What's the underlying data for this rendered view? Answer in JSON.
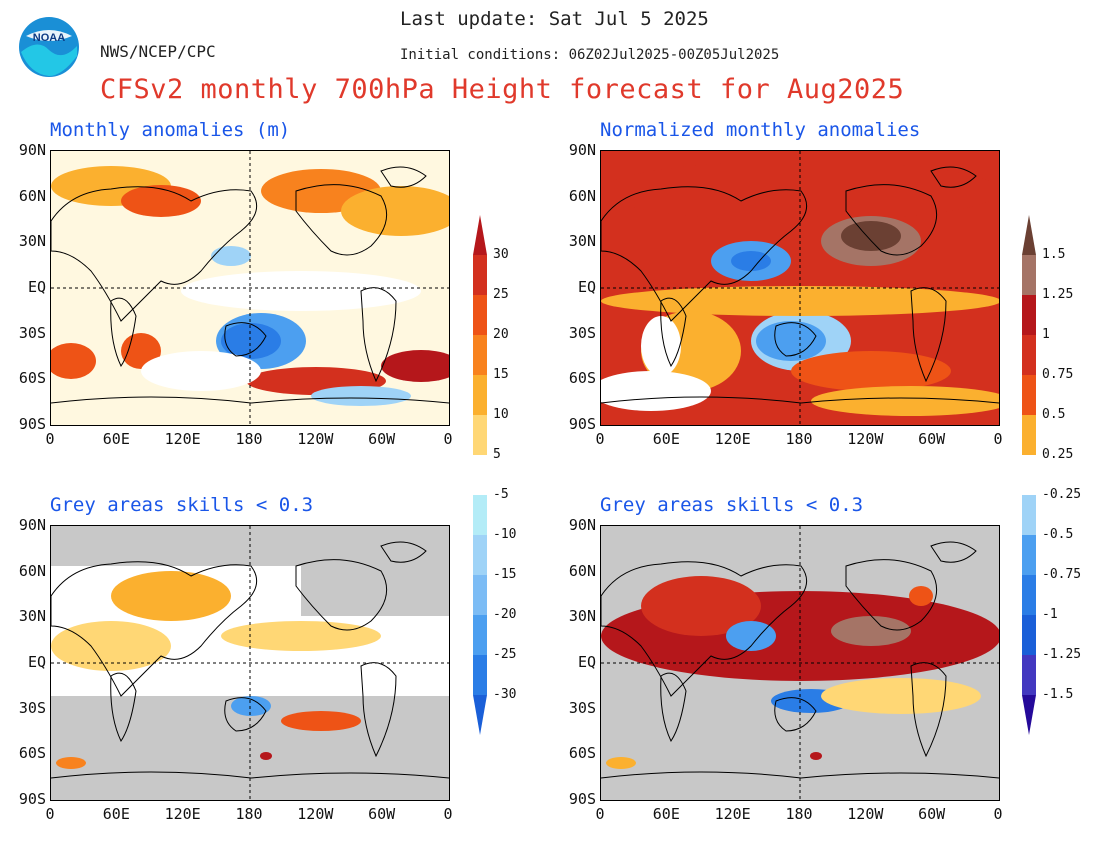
{
  "header": {
    "last_update": "Last update: Sat Jul 5 2025",
    "initial_conditions": "Initial conditions: 06Z02Jul2025-00Z05Jul2025",
    "org": "NWS/NCEP/CPC",
    "logo_text": "NOAA",
    "title": "CFSv2 monthly 700hPa Height forecast for Aug2025"
  },
  "panels": {
    "top_left": "Monthly anomalies (m)",
    "top_right": "Normalized monthly anomalies",
    "bottom_left": "Grey areas skills < 0.3",
    "bottom_right": "Grey areas skills < 0.3"
  },
  "axes": {
    "lat_labels": [
      "90N",
      "60N",
      "30N",
      "EQ",
      "30S",
      "60S",
      "90S"
    ],
    "lon_labels": [
      "0",
      "60E",
      "120E",
      "180",
      "120W",
      "60W",
      "0"
    ]
  },
  "colorbar_left": {
    "labels": [
      "30",
      "25",
      "20",
      "15",
      "10",
      "5",
      "-5",
      "-10",
      "-15",
      "-20",
      "-25",
      "-30"
    ],
    "colors": [
      "#b5171b",
      "#d3301e",
      "#ee5316",
      "#f8821e",
      "#fbb02f",
      "#ffd775",
      "#ffffff",
      "#b3ecf7",
      "#9fd3f7",
      "#7cbcf5",
      "#4c9ff0",
      "#2a7de6",
      "#1a5fd8"
    ]
  },
  "colorbar_right": {
    "labels": [
      "1.5",
      "1.25",
      "1",
      "0.75",
      "0.5",
      "0.25",
      "-0.25",
      "-0.5",
      "-0.75",
      "-1",
      "-1.25",
      "-1.5"
    ],
    "colors": [
      "#6b4033",
      "#a57466",
      "#b5171b",
      "#d3301e",
      "#ee5316",
      "#fbb02f",
      "#ffffff",
      "#9fd3f7",
      "#4c9ff0",
      "#2a7de6",
      "#1a5fd8",
      "#4338c0",
      "#250a9a"
    ]
  }
}
